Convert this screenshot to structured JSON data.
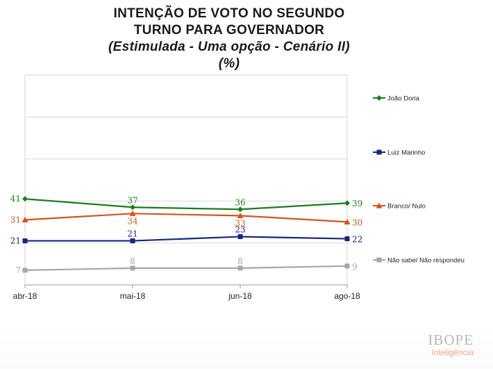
{
  "title": {
    "line1": "INTENÇÃO DE VOTO NO SEGUNDO",
    "line2": "TURNO PARA GOVERNADOR",
    "line3": "(Estimulada - Uma opção - Cenário II)",
    "line4": "(%)"
  },
  "brand": {
    "name": "IBOPE",
    "sub": "inteligência"
  },
  "chart_data": {
    "type": "line",
    "categories": [
      "abr-18",
      "mai-18",
      "jun-18",
      "ago-18"
    ],
    "ylim": [
      0,
      100
    ],
    "grid": true,
    "legend_position": "right",
    "series": [
      {
        "name": "João Doria",
        "values": [
          41,
          37,
          36,
          39
        ],
        "color": "#1e7a1e",
        "marker": "diamond"
      },
      {
        "name": "Luiz Marinho",
        "values": [
          21,
          21,
          23,
          22
        ],
        "color": "#1a237e",
        "marker": "square"
      },
      {
        "name": "Branco/ Nulo",
        "values": [
          31,
          34,
          33,
          30
        ],
        "color": "#d2541e",
        "marker": "triangle"
      },
      {
        "name": "Não sabe/ Não respondeu",
        "values": [
          7,
          8,
          8,
          9
        ],
        "color": "#a6a6a6",
        "marker": "square"
      }
    ]
  }
}
